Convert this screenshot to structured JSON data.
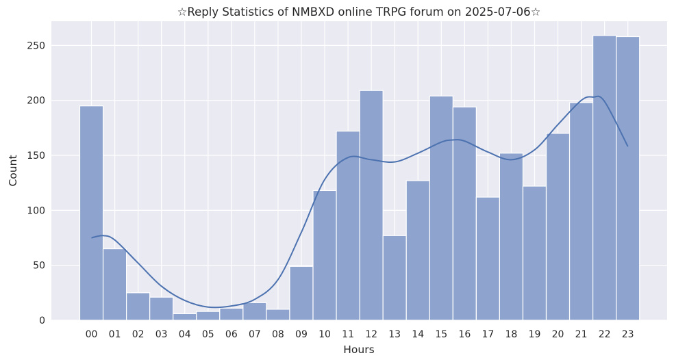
{
  "chart_data": {
    "type": "bar",
    "title": "☆Reply Statistics of NMBXD online TRPG forum on 2025-07-06☆",
    "xlabel": "Hours",
    "ylabel": "Count",
    "categories": [
      "00",
      "01",
      "02",
      "03",
      "04",
      "05",
      "06",
      "07",
      "08",
      "09",
      "10",
      "11",
      "12",
      "13",
      "14",
      "15",
      "16",
      "17",
      "18",
      "19",
      "20",
      "21",
      "22",
      "23"
    ],
    "values": [
      195,
      65,
      25,
      21,
      6,
      8,
      11,
      16,
      10,
      49,
      118,
      172,
      209,
      77,
      127,
      204,
      194,
      112,
      152,
      122,
      170,
      198,
      259,
      258
    ],
    "kde": {
      "x": [
        0,
        0.5,
        1,
        2,
        3,
        4,
        5,
        6,
        7,
        8,
        9,
        10,
        11,
        12,
        13,
        14,
        15,
        15.5,
        16,
        17,
        18,
        19,
        20,
        21,
        21.5,
        22,
        23
      ],
      "y": [
        75,
        77,
        73,
        52,
        31,
        18,
        12,
        13,
        19,
        37,
        80,
        128,
        148,
        146,
        144,
        152,
        162,
        164,
        163,
        153,
        146,
        155,
        178,
        200,
        203,
        199,
        158
      ]
    },
    "ylim": [
      0,
      272
    ],
    "yticks": [
      0,
      50,
      100,
      150,
      200,
      250
    ],
    "grid": true,
    "colors": {
      "bar_fill": "#8ea3cd",
      "bar_edge": "#ffffff",
      "kde_line": "#4c72b0",
      "plot_bg": "#eaeaf2",
      "grid": "#ffffff"
    }
  }
}
